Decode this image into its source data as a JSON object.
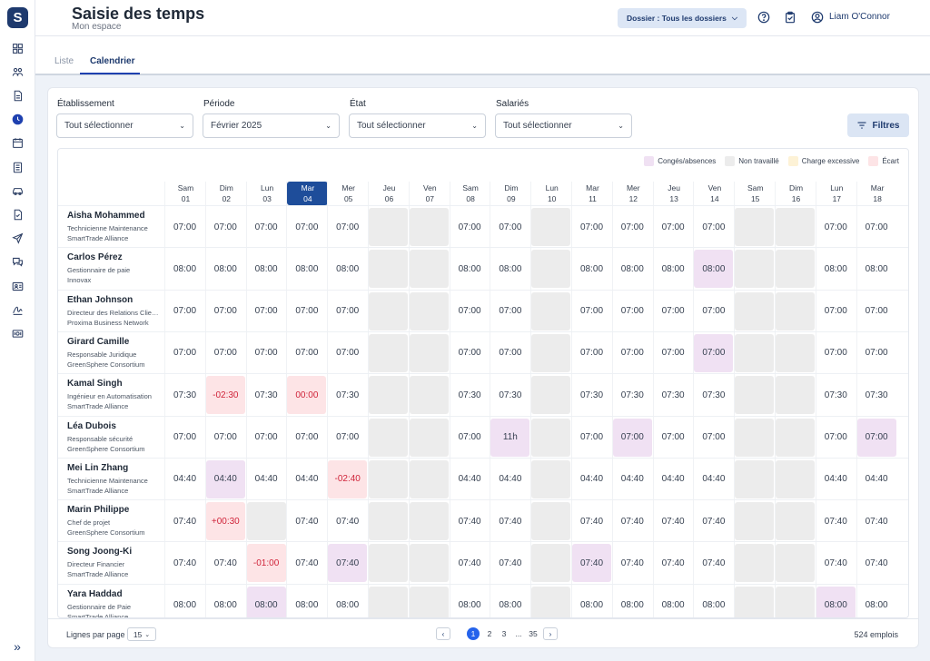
{
  "app": {
    "logo_letter": "S",
    "title": "Saisie des temps",
    "subtitle": "Mon espace"
  },
  "header": {
    "dossier_label": "Dossier : Tous les dossiers",
    "user_name": "Liam O'Connor"
  },
  "sidebar": {
    "icons": [
      "dashboard-icon",
      "team-icon",
      "document-icon",
      "clock-icon",
      "calendar-icon",
      "list-icon",
      "car-icon",
      "checklist-icon",
      "send-icon",
      "chat-icon",
      "id-card-icon",
      "signature-icon",
      "payroll-icon"
    ],
    "active_index": 3,
    "expand_glyph": "»"
  },
  "tabs": [
    {
      "label": "Liste",
      "active": false
    },
    {
      "label": "Calendrier",
      "active": true
    }
  ],
  "filters": [
    {
      "label": "Établissement",
      "value": "Tout sélectionner"
    },
    {
      "label": "Période",
      "value": "Février 2025"
    },
    {
      "label": "État",
      "value": "Tout sélectionner"
    },
    {
      "label": "Salariés",
      "value": "Tout sélectionner"
    }
  ],
  "filtres_button": "Filtres",
  "legend": [
    {
      "label": "Congés/absences",
      "color": "#f0e1f3"
    },
    {
      "label": "Non travaillé",
      "color": "#ececec"
    },
    {
      "label": "Charge excessive",
      "color": "#fdf2d6"
    },
    {
      "label": "Écart",
      "color": "#fde4e6"
    }
  ],
  "days": [
    {
      "dow": "Sam",
      "num": "01"
    },
    {
      "dow": "Dim",
      "num": "02"
    },
    {
      "dow": "Lun",
      "num": "03"
    },
    {
      "dow": "Mar",
      "num": "04",
      "today": true
    },
    {
      "dow": "Mer",
      "num": "05"
    },
    {
      "dow": "Jeu",
      "num": "06"
    },
    {
      "dow": "Ven",
      "num": "07"
    },
    {
      "dow": "Sam",
      "num": "08"
    },
    {
      "dow": "Dim",
      "num": "09"
    },
    {
      "dow": "Lun",
      "num": "10"
    },
    {
      "dow": "Mar",
      "num": "11"
    },
    {
      "dow": "Mer",
      "num": "12"
    },
    {
      "dow": "Jeu",
      "num": "13"
    },
    {
      "dow": "Ven",
      "num": "14"
    },
    {
      "dow": "Sam",
      "num": "15"
    },
    {
      "dow": "Dim",
      "num": "16"
    },
    {
      "dow": "Lun",
      "num": "17"
    },
    {
      "dow": "Mar",
      "num": "18"
    }
  ],
  "employees": [
    {
      "name": "Aisha Mohammed",
      "role": "Technicienne Maintenance",
      "company": "SmartTrade Alliance",
      "cells": [
        [
          "07:00",
          ""
        ],
        [
          "07:00",
          ""
        ],
        [
          "07:00",
          ""
        ],
        [
          "07:00",
          ""
        ],
        [
          "07:00",
          ""
        ],
        [
          "",
          "off"
        ],
        [
          "",
          "off"
        ],
        [
          "07:00",
          ""
        ],
        [
          "07:00",
          ""
        ],
        [
          "",
          "off"
        ],
        [
          "07:00",
          ""
        ],
        [
          "07:00",
          ""
        ],
        [
          "07:00",
          ""
        ],
        [
          "07:00",
          ""
        ],
        [
          "",
          "off"
        ],
        [
          "",
          "off"
        ],
        [
          "07:00",
          ""
        ],
        [
          "07:00",
          ""
        ]
      ]
    },
    {
      "name": "Carlos Pérez",
      "role": "Gestionnaire de paie",
      "company": "Innovax",
      "cells": [
        [
          "08:00",
          ""
        ],
        [
          "08:00",
          ""
        ],
        [
          "08:00",
          ""
        ],
        [
          "08:00",
          ""
        ],
        [
          "08:00",
          ""
        ],
        [
          "",
          "off"
        ],
        [
          "",
          "off"
        ],
        [
          "08:00",
          ""
        ],
        [
          "08:00",
          ""
        ],
        [
          "",
          "off"
        ],
        [
          "08:00",
          ""
        ],
        [
          "08:00",
          ""
        ],
        [
          "08:00",
          ""
        ],
        [
          "08:00",
          "leave"
        ],
        [
          "",
          "off"
        ],
        [
          "",
          "off"
        ],
        [
          "08:00",
          ""
        ],
        [
          "08:00",
          ""
        ]
      ]
    },
    {
      "name": "Ethan Johnson",
      "role": "Directeur des Relations Clients",
      "company": "Proxima Business Network",
      "cells": [
        [
          "07:00",
          ""
        ],
        [
          "07:00",
          ""
        ],
        [
          "07:00",
          ""
        ],
        [
          "07:00",
          ""
        ],
        [
          "07:00",
          ""
        ],
        [
          "",
          "off"
        ],
        [
          "",
          "off"
        ],
        [
          "07:00",
          ""
        ],
        [
          "07:00",
          ""
        ],
        [
          "",
          "off"
        ],
        [
          "07:00",
          ""
        ],
        [
          "07:00",
          ""
        ],
        [
          "07:00",
          ""
        ],
        [
          "07:00",
          ""
        ],
        [
          "",
          "off"
        ],
        [
          "",
          "off"
        ],
        [
          "07:00",
          ""
        ],
        [
          "07:00",
          ""
        ]
      ]
    },
    {
      "name": "Girard Camille",
      "role": "Responsable Juridique",
      "company": "GreenSphere Consortium",
      "cells": [
        [
          "07:00",
          ""
        ],
        [
          "07:00",
          ""
        ],
        [
          "07:00",
          ""
        ],
        [
          "07:00",
          ""
        ],
        [
          "07:00",
          ""
        ],
        [
          "",
          "off"
        ],
        [
          "",
          "off"
        ],
        [
          "07:00",
          ""
        ],
        [
          "07:00",
          ""
        ],
        [
          "",
          "off"
        ],
        [
          "07:00",
          ""
        ],
        [
          "07:00",
          ""
        ],
        [
          "07:00",
          ""
        ],
        [
          "07:00",
          "leave"
        ],
        [
          "",
          "off"
        ],
        [
          "",
          "off"
        ],
        [
          "07:00",
          ""
        ],
        [
          "07:00",
          ""
        ]
      ]
    },
    {
      "name": "Kamal Singh",
      "role": "Ingénieur en Automatisation",
      "company": "SmartTrade Alliance",
      "cells": [
        [
          "07:30",
          ""
        ],
        [
          "-02:30",
          "neg"
        ],
        [
          "07:30",
          ""
        ],
        [
          "00:00",
          "neg"
        ],
        [
          "07:30",
          ""
        ],
        [
          "",
          "off"
        ],
        [
          "",
          "off"
        ],
        [
          "07:30",
          ""
        ],
        [
          "07:30",
          ""
        ],
        [
          "",
          "off"
        ],
        [
          "07:30",
          ""
        ],
        [
          "07:30",
          ""
        ],
        [
          "07:30",
          ""
        ],
        [
          "07:30",
          ""
        ],
        [
          "",
          "off"
        ],
        [
          "",
          "off"
        ],
        [
          "07:30",
          ""
        ],
        [
          "07:30",
          ""
        ]
      ]
    },
    {
      "name": "Léa Dubois",
      "role": "Responsable sécurité",
      "company": "GreenSphere Consortium",
      "cells": [
        [
          "07:00",
          ""
        ],
        [
          "07:00",
          ""
        ],
        [
          "07:00",
          ""
        ],
        [
          "07:00",
          ""
        ],
        [
          "07:00",
          ""
        ],
        [
          "",
          "off"
        ],
        [
          "",
          "off"
        ],
        [
          "07:00",
          ""
        ],
        [
          "11h",
          "leave"
        ],
        [
          "",
          "off"
        ],
        [
          "07:00",
          ""
        ],
        [
          "07:00",
          "leave"
        ],
        [
          "07:00",
          ""
        ],
        [
          "07:00",
          ""
        ],
        [
          "",
          "off"
        ],
        [
          "",
          "off"
        ],
        [
          "07:00",
          ""
        ],
        [
          "07:00",
          "leave"
        ]
      ]
    },
    {
      "name": "Mei Lin Zhang",
      "role": "Technicienne Maintenance",
      "company": "SmartTrade Alliance",
      "cells": [
        [
          "04:40",
          ""
        ],
        [
          "04:40",
          "leave"
        ],
        [
          "04:40",
          ""
        ],
        [
          "04:40",
          ""
        ],
        [
          "-02:40",
          "neg"
        ],
        [
          "",
          "off"
        ],
        [
          "",
          "off"
        ],
        [
          "04:40",
          ""
        ],
        [
          "04:40",
          ""
        ],
        [
          "",
          "off"
        ],
        [
          "04:40",
          ""
        ],
        [
          "04:40",
          ""
        ],
        [
          "04:40",
          ""
        ],
        [
          "04:40",
          ""
        ],
        [
          "",
          "off"
        ],
        [
          "",
          "off"
        ],
        [
          "04:40",
          ""
        ],
        [
          "04:40",
          ""
        ]
      ]
    },
    {
      "name": "Marin Philippe",
      "role": "Chef de projet",
      "company": "GreenSphere Consortium",
      "cells": [
        [
          "07:40",
          ""
        ],
        [
          "+00:30",
          "pos"
        ],
        [
          "",
          "off"
        ],
        [
          "07:40",
          ""
        ],
        [
          "07:40",
          ""
        ],
        [
          "",
          "off"
        ],
        [
          "",
          "off"
        ],
        [
          "07:40",
          ""
        ],
        [
          "07:40",
          ""
        ],
        [
          "",
          "off"
        ],
        [
          "07:40",
          ""
        ],
        [
          "07:40",
          ""
        ],
        [
          "07:40",
          ""
        ],
        [
          "07:40",
          ""
        ],
        [
          "",
          "off"
        ],
        [
          "",
          "off"
        ],
        [
          "07:40",
          ""
        ],
        [
          "07:40",
          ""
        ]
      ]
    },
    {
      "name": "Song Joong-Ki",
      "role": "Directeur Financier",
      "company": "SmartTrade Alliance",
      "cells": [
        [
          "07:40",
          ""
        ],
        [
          "07:40",
          ""
        ],
        [
          "-01:00",
          "neg"
        ],
        [
          "07:40",
          ""
        ],
        [
          "07:40",
          "leave"
        ],
        [
          "",
          "off"
        ],
        [
          "",
          "off"
        ],
        [
          "07:40",
          ""
        ],
        [
          "07:40",
          ""
        ],
        [
          "",
          "off"
        ],
        [
          "07:40",
          "leave"
        ],
        [
          "07:40",
          ""
        ],
        [
          "07:40",
          ""
        ],
        [
          "07:40",
          ""
        ],
        [
          "",
          "off"
        ],
        [
          "",
          "off"
        ],
        [
          "07:40",
          ""
        ],
        [
          "07:40",
          ""
        ]
      ]
    },
    {
      "name": "Yara Haddad",
      "role": "Gestionnaire de Paie",
      "company": "SmartTrade Alliance",
      "cells": [
        [
          "08:00",
          ""
        ],
        [
          "08:00",
          ""
        ],
        [
          "08:00",
          "leave"
        ],
        [
          "08:00",
          ""
        ],
        [
          "08:00",
          ""
        ],
        [
          "",
          "off"
        ],
        [
          "",
          "off"
        ],
        [
          "08:00",
          ""
        ],
        [
          "08:00",
          ""
        ],
        [
          "",
          "off"
        ],
        [
          "08:00",
          ""
        ],
        [
          "08:00",
          ""
        ],
        [
          "08:00",
          ""
        ],
        [
          "08:00",
          ""
        ],
        [
          "",
          "off"
        ],
        [
          "",
          "off"
        ],
        [
          "08:00",
          "leave"
        ],
        [
          "08:00",
          ""
        ]
      ]
    }
  ],
  "footer": {
    "rows_label": "Lignes par page",
    "rows_value": "15",
    "pages": [
      "1",
      "2",
      "3",
      "...",
      "35"
    ],
    "active_page": "1",
    "count_label": "524 emplois"
  }
}
